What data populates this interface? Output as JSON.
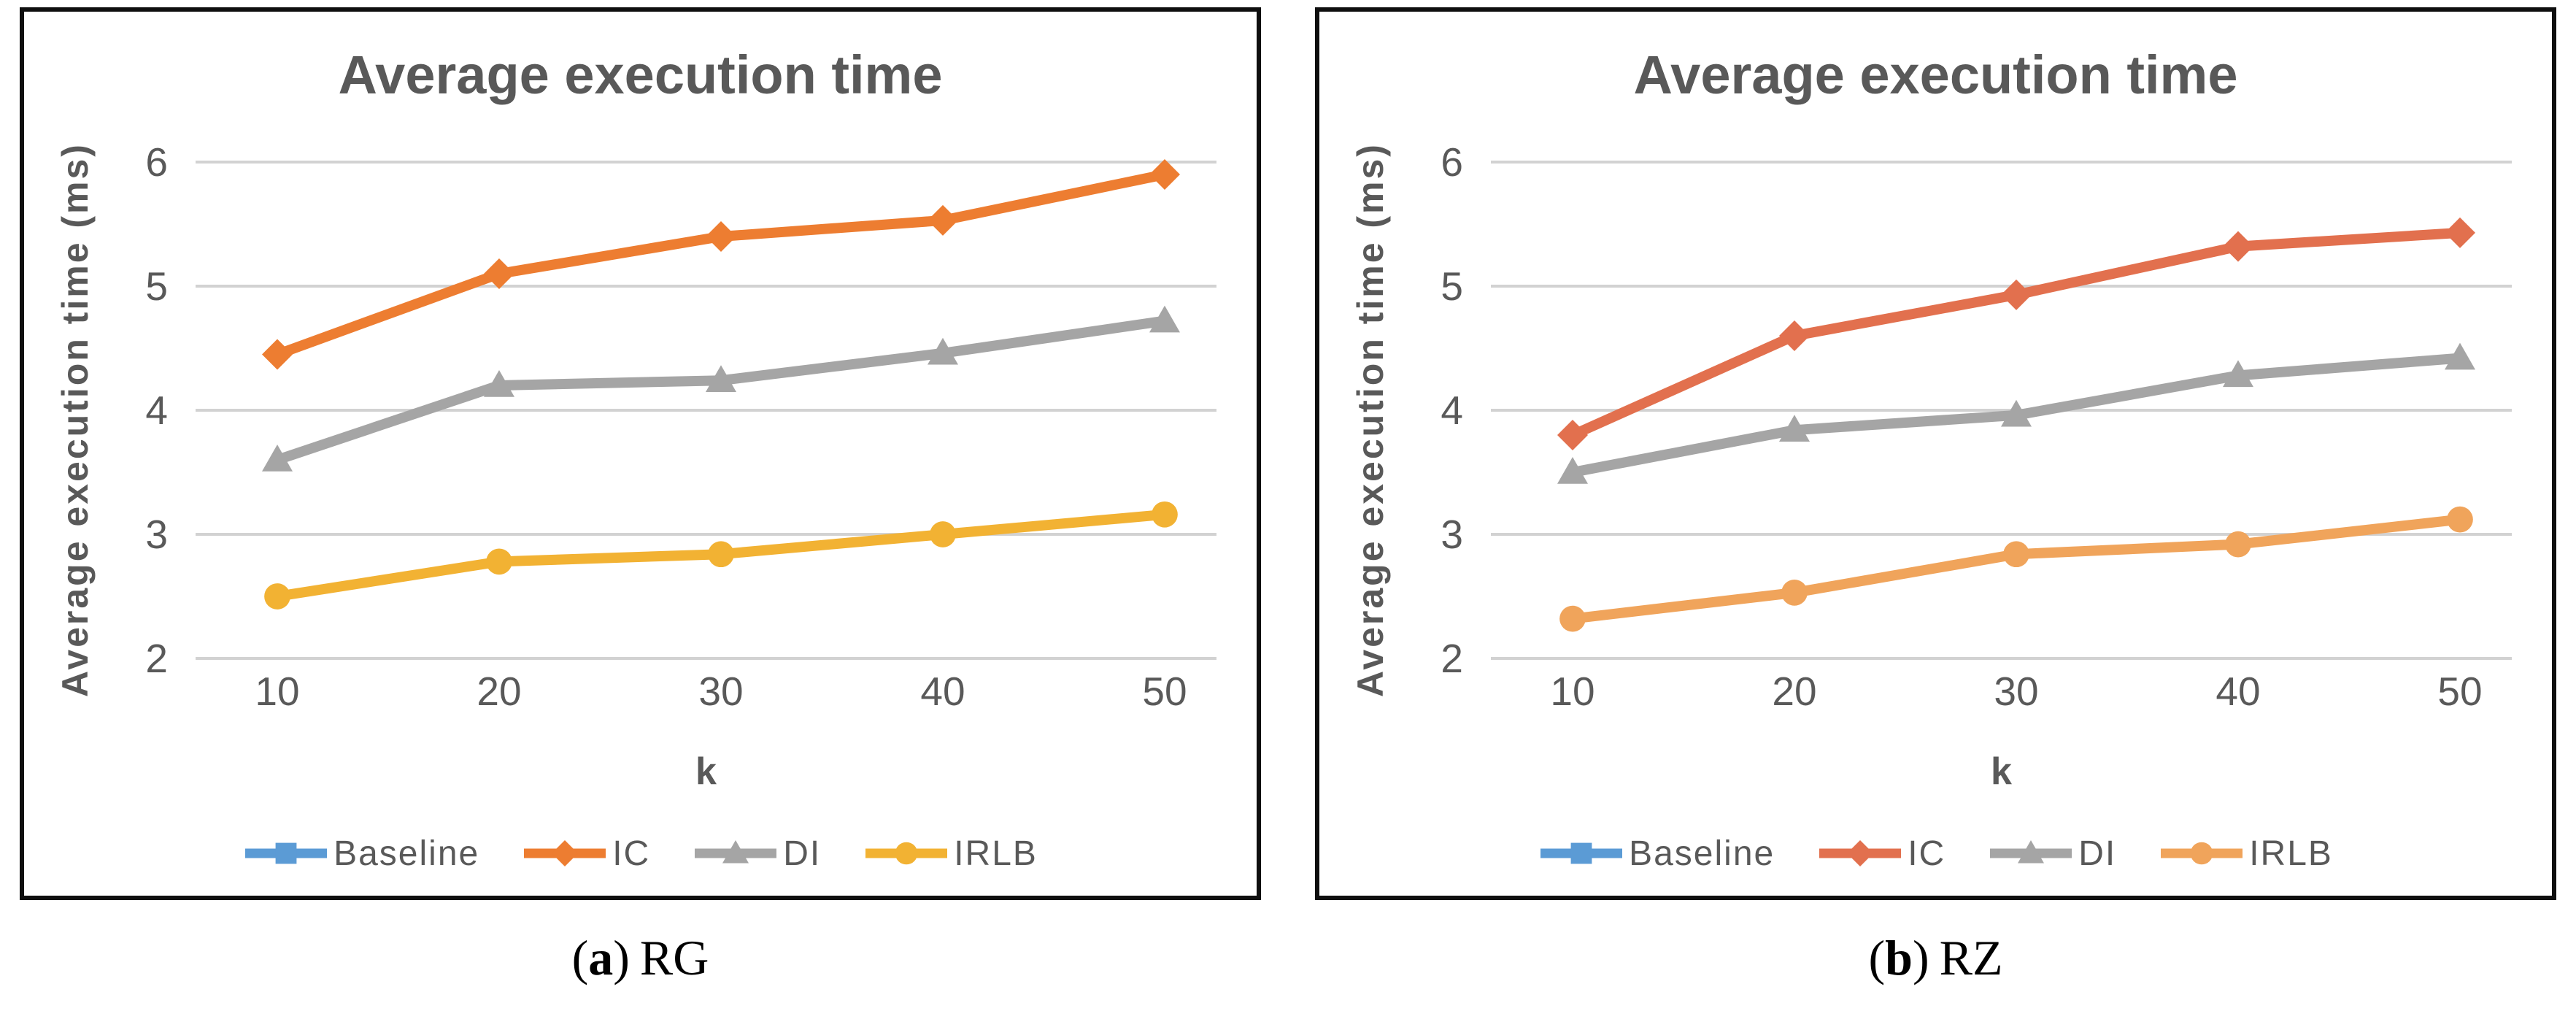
{
  "figure": {
    "background": "#ffffff",
    "border_color": "#0f0f0f"
  },
  "text_color": "#595959",
  "grid_color": "#d2d2d2",
  "chart_data": [
    {
      "type": "line",
      "title": "Average execution time",
      "xlabel": "k",
      "ylabel": "Average execution time (ms)",
      "x": [
        10,
        20,
        30,
        40,
        50
      ],
      "y_ticks": [
        6,
        5,
        4,
        3,
        2
      ],
      "ylim": [
        2,
        6
      ],
      "grid": true,
      "legend_position": "bottom",
      "caption": {
        "open": "(",
        "letter": "a",
        "close": ")",
        "label": "RG"
      },
      "series": [
        {
          "name": "Baseline",
          "color": "#5B9BD5",
          "marker": "square",
          "values": null
        },
        {
          "name": "IC",
          "color": "#ED7D31",
          "marker": "diamond",
          "values": [
            4.45,
            5.1,
            5.4,
            5.53,
            5.9
          ]
        },
        {
          "name": "DI",
          "color": "#A5A5A5",
          "marker": "triangle",
          "values": [
            3.6,
            4.2,
            4.24,
            4.46,
            4.72
          ]
        },
        {
          "name": "IRLB",
          "color": "#F2B233",
          "marker": "circle",
          "values": [
            2.5,
            2.78,
            2.84,
            3.0,
            3.16
          ]
        }
      ]
    },
    {
      "type": "line",
      "title": "Average execution time",
      "xlabel": "k",
      "ylabel": "Average execution time (ms)",
      "x": [
        10,
        20,
        30,
        40,
        50
      ],
      "y_ticks": [
        6,
        5,
        4,
        3,
        2
      ],
      "ylim": [
        2,
        6
      ],
      "grid": true,
      "legend_position": "bottom",
      "caption": {
        "open": "(",
        "letter": "b",
        "close": ")",
        "label": "RZ"
      },
      "series": [
        {
          "name": "Baseline",
          "color": "#5B9BD5",
          "marker": "square",
          "values": null
        },
        {
          "name": "IC",
          "color": "#E2704E",
          "marker": "diamond",
          "values": [
            3.8,
            4.6,
            4.93,
            5.32,
            5.43
          ]
        },
        {
          "name": "DI",
          "color": "#A5A5A5",
          "marker": "triangle",
          "values": [
            3.5,
            3.84,
            3.96,
            4.28,
            4.42
          ]
        },
        {
          "name": "IRLB",
          "color": "#F0A45B",
          "marker": "circle",
          "values": [
            2.32,
            2.53,
            2.84,
            2.92,
            3.12
          ]
        }
      ]
    }
  ]
}
